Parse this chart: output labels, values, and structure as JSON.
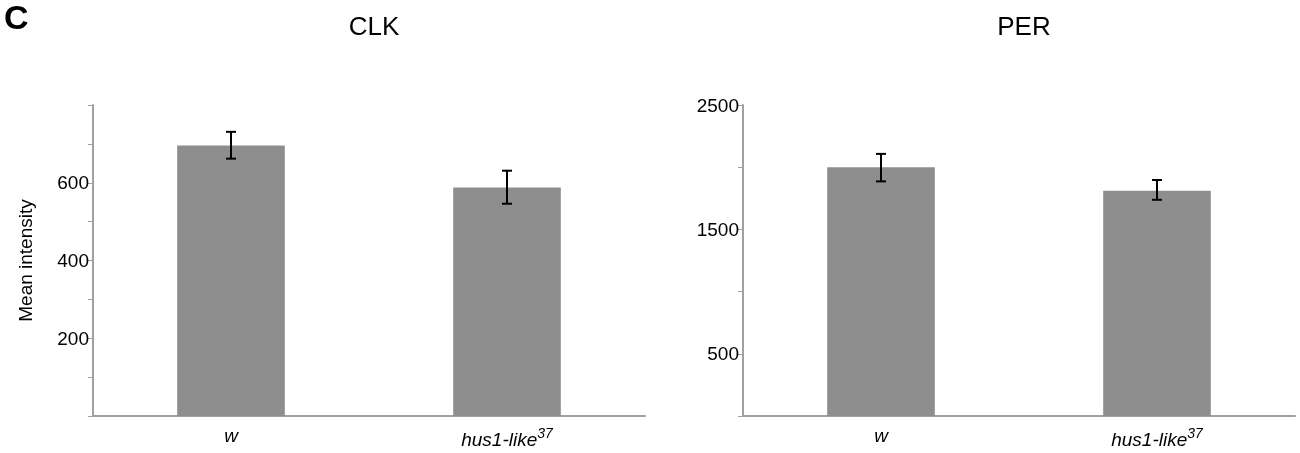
{
  "chart_data": [
    {
      "type": "bar",
      "title": "CLK",
      "ylabel": "Mean intensity",
      "annotations": [
        "C"
      ],
      "categories": [
        "w",
        "hus1-like$^{37}$"
      ],
      "series": [
        {
          "color": "#8e8e8e",
          "values": [
            696,
            588
          ],
          "errors": [
            [
              662,
              731
            ],
            [
              546,
              631
            ]
          ]
        }
      ],
      "ylim": [
        0,
        800
      ],
      "yticks": [
        {
          "value": 0,
          "label": null
        },
        {
          "value": 100,
          "label": null
        },
        200,
        {
          "value": 300,
          "label": null
        },
        400,
        {
          "value": 500,
          "label": null
        },
        600,
        {
          "value": 700,
          "label": null
        },
        {
          "value": 800,
          "label": null
        }
      ],
      "grid": false
    },
    {
      "type": "bar",
      "title": "PER",
      "categories": [
        "w",
        "hus1-like$^{37}$"
      ],
      "series": [
        {
          "color": "#8e8e8e",
          "values": [
            2000,
            1810
          ],
          "errors": [
            [
              1886,
              2107
            ],
            [
              1738,
              1897
            ]
          ]
        }
      ],
      "ylim": [
        0,
        2500
      ],
      "yticks": [
        {
          "value": 0,
          "label": null
        },
        500,
        {
          "value": 1000,
          "label": null
        },
        1500,
        {
          "value": 2000,
          "label": null
        },
        2500
      ],
      "grid": false
    }
  ]
}
